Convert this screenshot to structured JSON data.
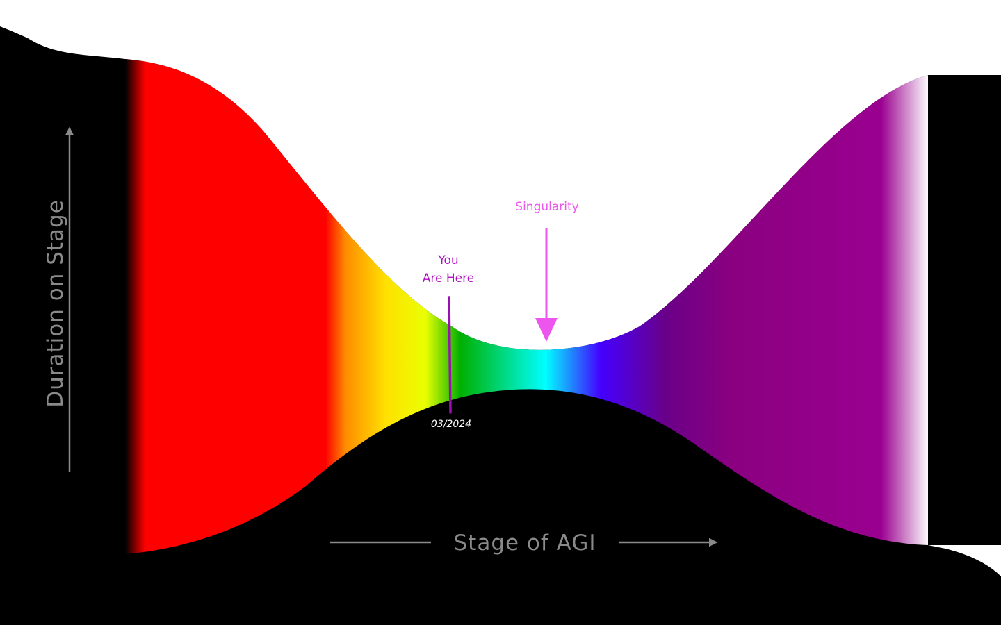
{
  "diagram": {
    "colors": {
      "background_dark": "#000000",
      "background_light": "#ffffff",
      "axis": "#8a8a8a",
      "you_are_here": "#b010c0",
      "singularity": "#ee55ee",
      "date_label": "#ffffff"
    },
    "spectrum_colors": [
      "#000000",
      "#ff0000",
      "#ff0000",
      "#ff8c00",
      "#ffe000",
      "#eaff00",
      "#00b000",
      "#00ffff",
      "#4400ff",
      "#6a0088",
      "#8a0080",
      "#9a0090",
      "#ffffff"
    ],
    "y_axis": {
      "label": "Duration on Stage"
    },
    "x_axis": {
      "label": "Stage of AGI"
    },
    "markers": {
      "you_are_here": {
        "line1": "You",
        "line2": "Are Here",
        "date": "03/2024"
      },
      "singularity": {
        "label": "Singularity"
      }
    }
  }
}
